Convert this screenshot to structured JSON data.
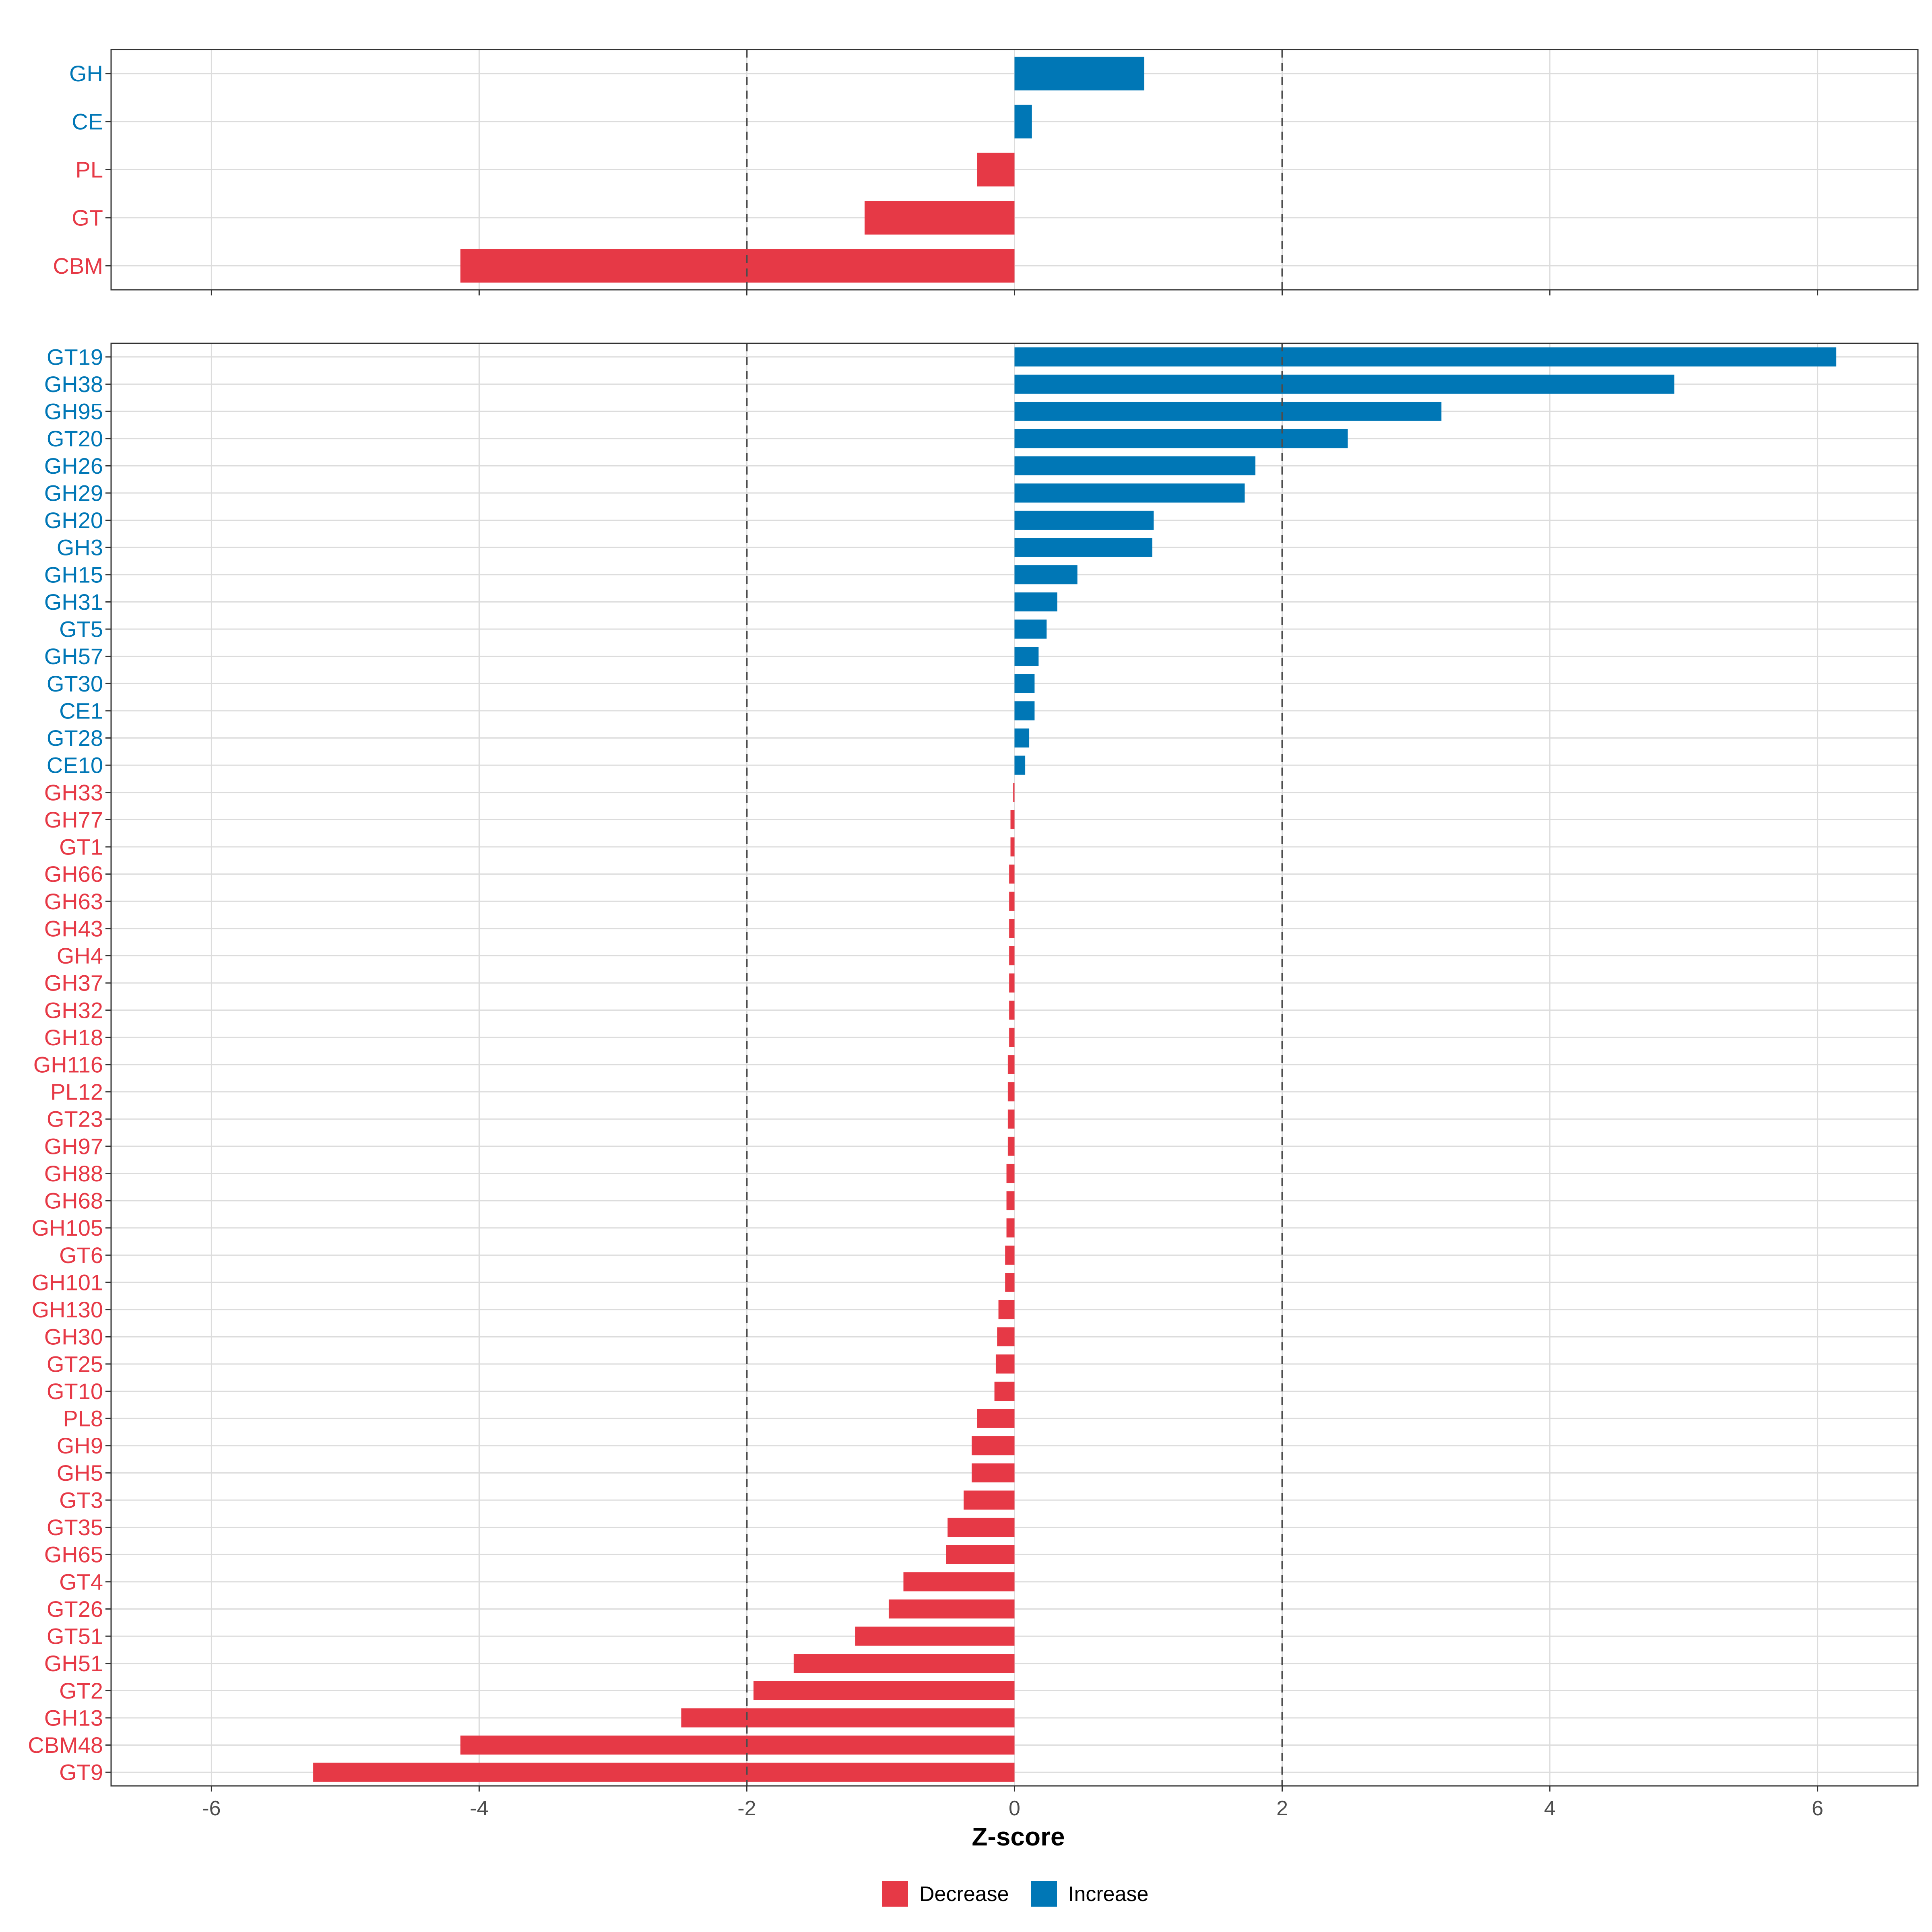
{
  "colors": {
    "decrease": "#E63946",
    "increase": "#0077B6"
  },
  "chart_data": [
    {
      "type": "bar",
      "orientation": "horizontal",
      "panel": "top",
      "xlim": [
        -6.75,
        6.75
      ],
      "xticks": [
        -6,
        -4,
        -2,
        0,
        2,
        4,
        6
      ],
      "reference_lines": [
        -2,
        2
      ],
      "grid": true,
      "categories": [
        "GH",
        "CE",
        "PL",
        "GT",
        "CBM"
      ],
      "values": [
        0.97,
        0.13,
        -0.28,
        -1.12,
        -4.14
      ]
    },
    {
      "type": "bar",
      "orientation": "horizontal",
      "panel": "bottom",
      "xlim": [
        -6.75,
        6.75
      ],
      "xticks": [
        -6,
        -4,
        -2,
        0,
        2,
        4,
        6
      ],
      "tick_labels": [
        "-6",
        "-4",
        "-2",
        "0",
        "2",
        "4",
        "6"
      ],
      "reference_lines": [
        -2,
        2
      ],
      "grid": true,
      "xlabel": "Z-score",
      "categories": [
        "GT19",
        "GH38",
        "GH95",
        "GT20",
        "GH26",
        "GH29",
        "GH20",
        "GH3",
        "GH15",
        "GH31",
        "GT5",
        "GH57",
        "GT30",
        "CE1",
        "GT28",
        "CE10",
        "GH33",
        "GH77",
        "GT1",
        "GH66",
        "GH63",
        "GH43",
        "GH4",
        "GH37",
        "GH32",
        "GH18",
        "GH116",
        "PL12",
        "GT23",
        "GH97",
        "GH88",
        "GH68",
        "GH105",
        "GT6",
        "GH101",
        "GH130",
        "GH30",
        "GT25",
        "GT10",
        "PL8",
        "GH9",
        "GH5",
        "GT3",
        "GT35",
        "GH65",
        "GT4",
        "GT26",
        "GT51",
        "GH51",
        "GT2",
        "GH13",
        "CBM48",
        "GT9"
      ],
      "values": [
        6.14,
        4.93,
        3.19,
        2.49,
        1.8,
        1.72,
        1.04,
        1.03,
        0.47,
        0.32,
        0.24,
        0.18,
        0.15,
        0.15,
        0.11,
        0.08,
        -0.01,
        -0.03,
        -0.03,
        -0.04,
        -0.04,
        -0.04,
        -0.04,
        -0.04,
        -0.04,
        -0.04,
        -0.05,
        -0.05,
        -0.05,
        -0.05,
        -0.06,
        -0.06,
        -0.06,
        -0.07,
        -0.07,
        -0.12,
        -0.13,
        -0.14,
        -0.15,
        -0.28,
        -0.32,
        -0.32,
        -0.38,
        -0.5,
        -0.51,
        -0.83,
        -0.94,
        -1.19,
        -1.65,
        -1.95,
        -2.49,
        -4.14,
        -5.24
      ]
    }
  ],
  "legend": {
    "position": "bottom",
    "items": [
      {
        "label": "Decrease",
        "color_key": "decrease"
      },
      {
        "label": "Increase",
        "color_key": "increase"
      }
    ]
  }
}
